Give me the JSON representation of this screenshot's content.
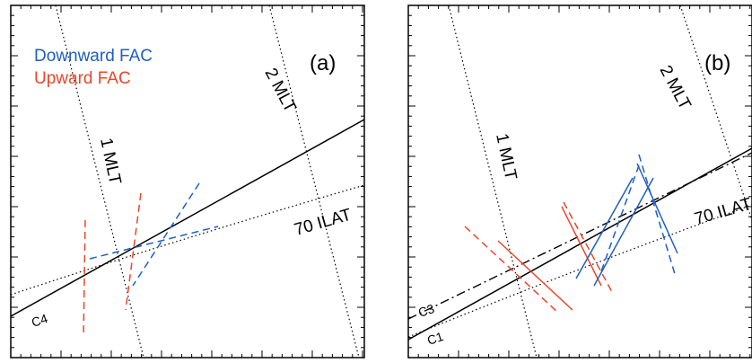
{
  "colors": {
    "downward": "#1f5fbf",
    "upward": "#e8462a",
    "frame": "#000000"
  },
  "legend": {
    "downward": "Downward FAC",
    "upward": "Upward FAC"
  },
  "panel_a": {
    "tag": "(a)",
    "mlt1": "1 MLT",
    "mlt2": "2 MLT",
    "ilat": "70 ILAT",
    "crossing": "C4"
  },
  "panel_b": {
    "tag": "(b)",
    "mlt1": "1 MLT",
    "mlt2": "2 MLT",
    "ilat": "70 ILAT",
    "crossing_1": "C3",
    "crossing_2": "C1"
  }
}
